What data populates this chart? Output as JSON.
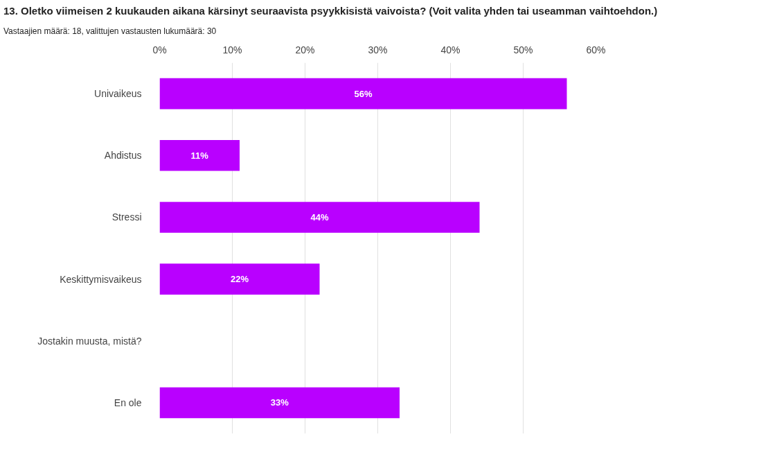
{
  "chart_data": {
    "type": "bar",
    "orientation": "horizontal",
    "title": "13. Oletko viimeisen 2 kuukauden aikana kärsinyt seuraavista psyykkisistä vaivoista? (Voit valita yhden tai useamman vaihtoehdon.)",
    "subtitle": "Vastaajien määrä: 18, valittujen vastausten lukumäärä: 30",
    "categories": [
      "Univaikeus",
      "Ahdistus",
      "Stressi",
      "Keskittymisvaikeus",
      "Jostakin muusta, mistä?",
      "En ole"
    ],
    "values": [
      56,
      11,
      44,
      22,
      0,
      33
    ],
    "value_labels": [
      "56%",
      "11%",
      "44%",
      "22%",
      null,
      "33%"
    ],
    "color": "#b900ff",
    "xlim": [
      0,
      60
    ],
    "xticks": [
      {
        "value": 0,
        "label": "0%"
      },
      {
        "value": 10,
        "label": "10%"
      },
      {
        "value": 20,
        "label": "20%"
      },
      {
        "value": 30,
        "label": "30%"
      },
      {
        "value": 40,
        "label": "40%"
      },
      {
        "value": 50,
        "label": "50%"
      },
      {
        "value": 60,
        "label": "60%"
      }
    ],
    "grid": "x"
  }
}
